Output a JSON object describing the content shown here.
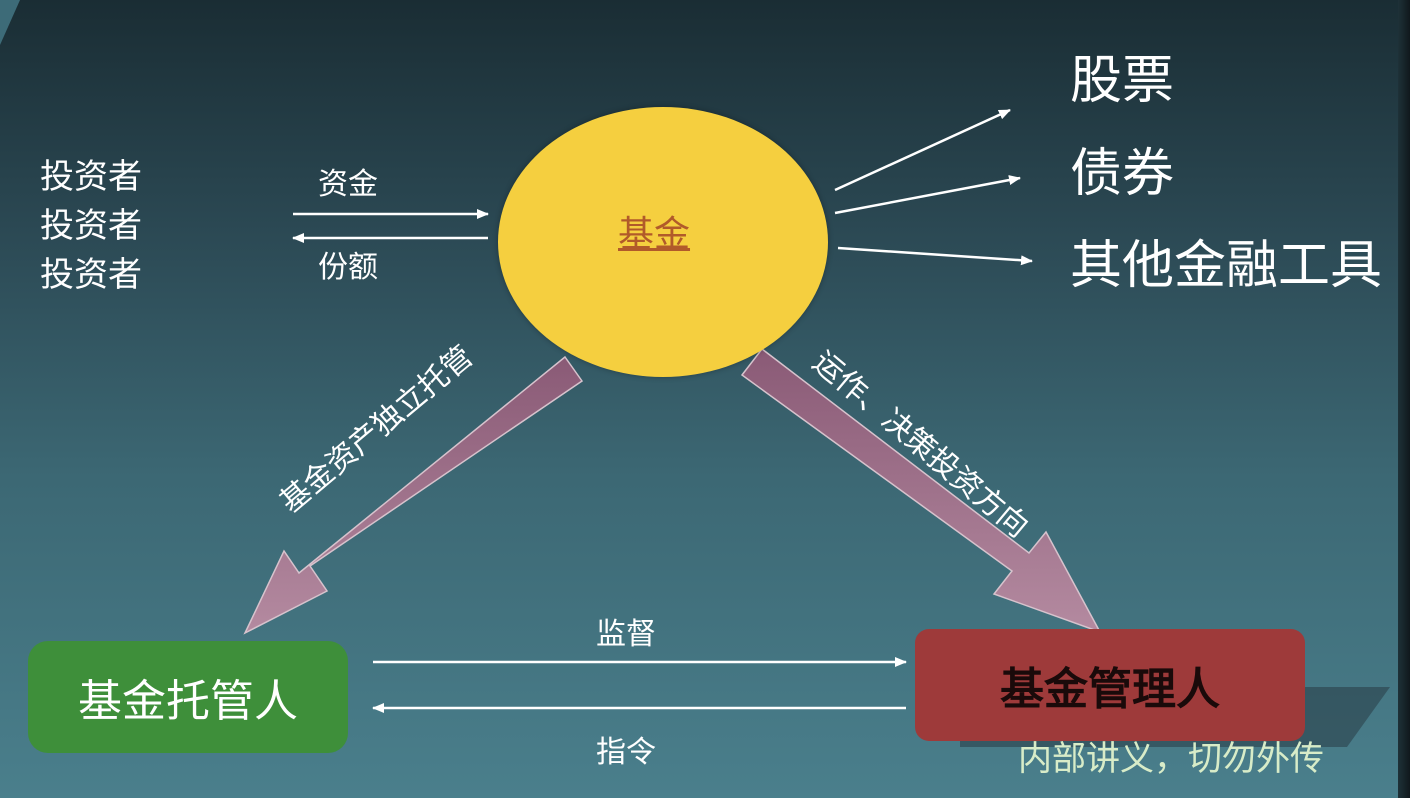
{
  "investors": [
    "投资者",
    "投资者",
    "投资者"
  ],
  "flows": {
    "capital": "资金",
    "shares": "份额",
    "supervision": "监督",
    "instruction": "指令"
  },
  "fund": {
    "label": "基金"
  },
  "assets": [
    "股票",
    "债券",
    "其他金融工具"
  ],
  "relations": {
    "custody": "基金资产独立托管",
    "operation": "运作、决策投资方向"
  },
  "custodian": {
    "label": "基金托管人"
  },
  "manager": {
    "label": "基金管理人"
  },
  "footer_note": "内部讲义，切勿外传",
  "colors": {
    "fund_fill": "#f5cf3f",
    "fund_text": "#b15a2a",
    "custodian_fill": "#3e8f3a",
    "manager_fill": "#9e3a3a",
    "big_arrow": "#9d6c86"
  }
}
